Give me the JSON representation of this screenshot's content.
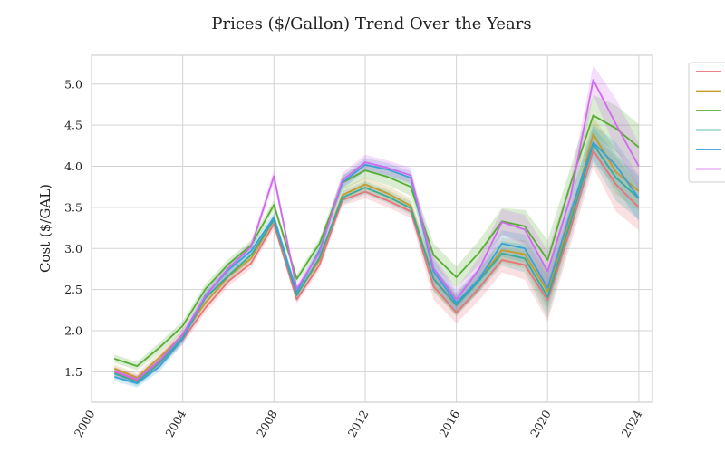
{
  "chart_data": {
    "type": "line",
    "title": "Prices ($/Gallon) Trend Over the Years",
    "xlabel": "",
    "ylabel": "Cost ($/GAL)",
    "xlim": [
      2000,
      2024.6
    ],
    "ylim": [
      1.13,
      5.35
    ],
    "x_ticks": [
      2000,
      2004,
      2008,
      2012,
      2016,
      2020,
      2024
    ],
    "y_ticks": [
      1.5,
      2.0,
      2.5,
      3.0,
      3.5,
      4.0,
      4.5,
      5.0
    ],
    "grid": true,
    "legend_position": "outside-right",
    "x": [
      2001,
      2002,
      2003,
      2004,
      2005,
      2006,
      2007,
      2008,
      2009,
      2010,
      2011,
      2012,
      2013,
      2014,
      2015,
      2016,
      2017,
      2018,
      2019,
      2020,
      2021,
      2022,
      2023,
      2024
    ],
    "series": [
      {
        "color": "#e8737a",
        "values": [
          1.5,
          1.4,
          1.63,
          1.89,
          2.28,
          2.6,
          2.82,
          3.3,
          2.38,
          2.8,
          3.59,
          3.69,
          3.58,
          3.45,
          2.54,
          2.22,
          2.52,
          2.86,
          2.8,
          2.37,
          3.23,
          4.19,
          3.78,
          3.5
        ],
        "lower": [
          1.45,
          1.35,
          1.57,
          1.83,
          2.22,
          2.54,
          2.76,
          3.24,
          2.33,
          2.74,
          3.52,
          3.61,
          3.5,
          3.37,
          2.38,
          2.09,
          2.37,
          2.71,
          2.62,
          2.11,
          3.04,
          3.99,
          3.45,
          3.22
        ],
        "upper": [
          1.55,
          1.45,
          1.69,
          1.95,
          2.34,
          2.66,
          2.88,
          3.36,
          2.43,
          2.86,
          3.66,
          3.77,
          3.66,
          3.53,
          2.7,
          2.35,
          2.67,
          3.01,
          2.98,
          2.63,
          3.42,
          4.39,
          4.11,
          3.78
        ]
      },
      {
        "color": "#c49b2c",
        "values": [
          1.54,
          1.43,
          1.68,
          1.95,
          2.34,
          2.66,
          2.88,
          3.35,
          2.44,
          2.86,
          3.65,
          3.78,
          3.67,
          3.52,
          2.63,
          2.31,
          2.62,
          2.98,
          2.93,
          2.48,
          3.36,
          4.39,
          3.93,
          3.7
        ],
        "lower": [
          1.49,
          1.38,
          1.62,
          1.89,
          2.28,
          2.6,
          2.82,
          3.29,
          2.39,
          2.8,
          3.57,
          3.7,
          3.58,
          3.43,
          2.48,
          2.18,
          2.48,
          2.83,
          2.76,
          2.24,
          3.18,
          4.18,
          3.66,
          3.46
        ],
        "upper": [
          1.59,
          1.48,
          1.74,
          2.01,
          2.4,
          2.72,
          2.94,
          3.41,
          2.49,
          2.92,
          3.73,
          3.86,
          3.76,
          3.61,
          2.78,
          2.44,
          2.76,
          3.13,
          3.1,
          2.72,
          3.54,
          4.6,
          4.2,
          3.94
        ]
      },
      {
        "color": "#55ad32",
        "values": [
          1.66,
          1.57,
          1.8,
          2.06,
          2.51,
          2.81,
          3.04,
          3.53,
          2.63,
          3.06,
          3.8,
          3.95,
          3.87,
          3.75,
          2.92,
          2.65,
          2.95,
          3.33,
          3.27,
          2.86,
          3.78,
          4.62,
          4.46,
          4.23
        ],
        "lower": [
          1.61,
          1.52,
          1.74,
          2.0,
          2.45,
          2.75,
          2.98,
          3.47,
          2.58,
          3.0,
          3.71,
          3.85,
          3.77,
          3.64,
          2.78,
          2.52,
          2.8,
          3.17,
          3.07,
          2.62,
          3.58,
          4.37,
          4.18,
          3.95
        ],
        "upper": [
          1.71,
          1.62,
          1.86,
          2.12,
          2.57,
          2.87,
          3.1,
          3.59,
          2.68,
          3.12,
          3.89,
          4.05,
          3.97,
          3.86,
          3.06,
          2.78,
          3.1,
          3.49,
          3.47,
          3.1,
          3.98,
          4.87,
          4.74,
          4.51
        ]
      },
      {
        "color": "#35ab9b",
        "values": [
          1.48,
          1.38,
          1.61,
          1.92,
          2.4,
          2.67,
          2.92,
          3.35,
          2.43,
          2.89,
          3.62,
          3.74,
          3.63,
          3.49,
          2.63,
          2.31,
          2.61,
          2.94,
          2.88,
          2.41,
          3.31,
          4.27,
          3.86,
          3.61
        ],
        "lower": [
          1.43,
          1.33,
          1.55,
          1.86,
          2.34,
          2.61,
          2.86,
          3.29,
          2.38,
          2.83,
          3.54,
          3.66,
          3.55,
          3.41,
          2.48,
          2.18,
          2.47,
          2.79,
          2.71,
          2.16,
          3.12,
          4.06,
          3.58,
          3.35
        ],
        "upper": [
          1.53,
          1.43,
          1.67,
          1.98,
          2.46,
          2.73,
          2.98,
          3.41,
          2.48,
          2.95,
          3.7,
          3.82,
          3.71,
          3.57,
          2.78,
          2.44,
          2.75,
          3.09,
          3.05,
          2.66,
          3.5,
          4.48,
          4.14,
          3.87
        ]
      },
      {
        "color": "#3aa1d8",
        "values": [
          1.44,
          1.36,
          1.57,
          1.9,
          2.43,
          2.74,
          2.97,
          3.38,
          2.47,
          2.98,
          3.8,
          4.02,
          3.96,
          3.86,
          2.72,
          2.34,
          2.63,
          3.06,
          3.0,
          2.52,
          3.43,
          4.29,
          4.01,
          3.61
        ],
        "lower": [
          1.39,
          1.31,
          1.51,
          1.84,
          2.37,
          2.68,
          2.91,
          3.32,
          2.42,
          2.92,
          3.72,
          3.94,
          3.88,
          3.78,
          2.57,
          2.21,
          2.48,
          2.9,
          2.83,
          2.28,
          3.24,
          4.07,
          3.73,
          3.33
        ],
        "upper": [
          1.49,
          1.41,
          1.63,
          1.96,
          2.49,
          2.8,
          3.03,
          3.44,
          2.52,
          3.04,
          3.88,
          4.1,
          4.04,
          3.94,
          2.87,
          2.47,
          2.78,
          3.22,
          3.17,
          2.76,
          3.62,
          4.51,
          4.29,
          3.89
        ]
      },
      {
        "color": "#d069ee",
        "values": [
          1.51,
          1.41,
          1.64,
          1.96,
          2.42,
          2.76,
          3.02,
          3.88,
          2.51,
          2.95,
          3.83,
          4.05,
          3.98,
          3.89,
          2.76,
          2.38,
          2.75,
          3.32,
          3.23,
          2.72,
          3.62,
          5.05,
          4.51,
          4.0
        ],
        "lower": [
          1.46,
          1.36,
          1.58,
          1.9,
          2.36,
          2.7,
          2.96,
          3.8,
          2.45,
          2.89,
          3.74,
          3.96,
          3.89,
          3.8,
          2.61,
          2.25,
          2.6,
          3.16,
          3.05,
          2.47,
          3.42,
          4.87,
          4.2,
          3.72
        ],
        "upper": [
          1.56,
          1.46,
          1.7,
          2.02,
          2.48,
          2.82,
          3.08,
          3.96,
          2.57,
          3.01,
          3.92,
          4.14,
          4.07,
          3.98,
          2.91,
          2.51,
          2.9,
          3.48,
          3.41,
          2.97,
          3.82,
          5.23,
          4.82,
          4.28
        ]
      }
    ]
  }
}
